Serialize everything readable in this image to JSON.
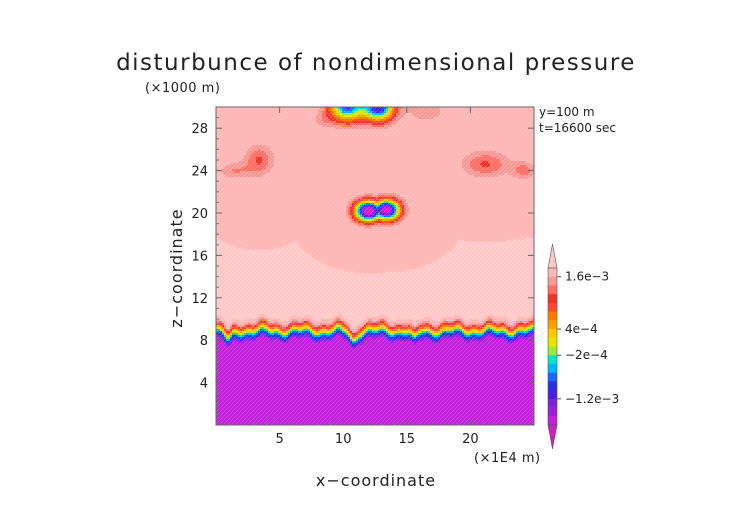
{
  "chart_data": {
    "type": "heatmap",
    "title": "disturbunce of nondimensional pressure",
    "xlabel": "x−coordinate",
    "ylabel": "z−coordinate",
    "x_unit": "(×1E4 m)",
    "y_unit": "(×1000 m)",
    "annotations": [
      "y=100  m",
      "t=16600 sec"
    ],
    "xlim": [
      0,
      25
    ],
    "ylim": [
      0,
      30
    ],
    "x_ticks": [
      5,
      10,
      15,
      20
    ],
    "x_tick_labels": [
      "5",
      "10",
      "15",
      "20"
    ],
    "y_ticks": [
      4,
      8,
      12,
      16,
      20,
      24,
      28
    ],
    "y_tick_labels": [
      "4",
      "8",
      "12",
      "16",
      "20",
      "24",
      "28"
    ],
    "colorbar": {
      "levels": [
        -0.0018,
        -0.0016,
        -0.0014,
        -0.0012,
        -0.001,
        -0.0008,
        -0.0006,
        -0.0004,
        -0.0002,
        0,
        0.0002,
        0.0004,
        0.0006,
        0.0008,
        0.001,
        0.0012,
        0.0014,
        0.0016,
        0.0018
      ],
      "colors": [
        "#d21ec8",
        "#c21edc",
        "#9a1ede",
        "#7a22e0",
        "#4a1ee0",
        "#2a30e0",
        "#1e64ff",
        "#00b4ff",
        "#00e6c8",
        "#a0e63c",
        "#e6e600",
        "#ffc800",
        "#ffa000",
        "#ff7800",
        "#ff4630",
        "#f03228",
        "#ff6e64",
        "#f59a96",
        "#ffb6b4",
        "#ffc8c8"
      ],
      "labels": [
        "1.6e−3",
        "4e−4",
        "−2e−4",
        "−1.2e−3"
      ],
      "label_values": [
        0.0016,
        0.0004,
        -0.0002,
        -0.0012
      ],
      "extend": "both"
    },
    "field_summary": {
      "background": 0.0018,
      "lower_layer": {
        "z_range": [
          0,
          8
        ],
        "value": -0.0018
      },
      "transition": {
        "z_range": [
          8,
          10
        ]
      },
      "features": [
        {
          "x": 12.5,
          "z": 20,
          "min": -0.0016
        },
        {
          "x": 3.5,
          "z": 25,
          "max": 0.0012
        },
        {
          "x": 21.5,
          "z": 24.5,
          "max": 0.0012
        },
        {
          "x": 10.2,
          "z": 29.5,
          "min": -0.0006
        },
        {
          "x": 12.8,
          "z": 29.5,
          "min": -0.001
        }
      ]
    }
  }
}
